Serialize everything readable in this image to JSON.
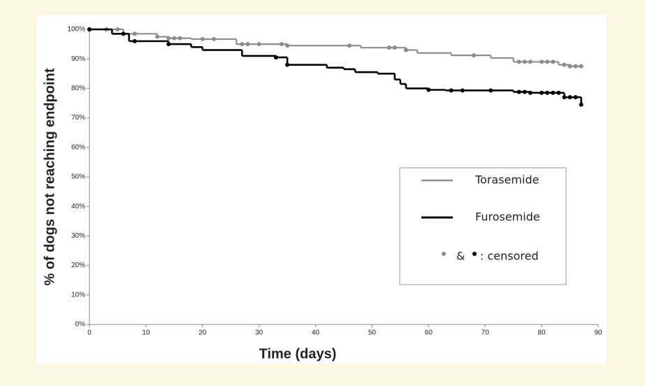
{
  "chart_data": {
    "type": "line",
    "step": true,
    "x_label": "Time (days)",
    "y_label": "% of dogs not reaching endpoint",
    "xlim": [
      0,
      90
    ],
    "xticks": [
      0,
      10,
      20,
      30,
      40,
      50,
      60,
      70,
      80,
      90
    ],
    "ylim": [
      0,
      100
    ],
    "yticks": [
      {
        "value": 0,
        "label": "0%"
      },
      {
        "value": 10,
        "label": "10%"
      },
      {
        "value": 20,
        "label": "20%"
      },
      {
        "value": 30,
        "label": "30%"
      },
      {
        "value": 40,
        "label": "40%"
      },
      {
        "value": 50,
        "label": "50%"
      },
      {
        "value": 60,
        "label": "60%"
      },
      {
        "value": 70,
        "label": "70%"
      },
      {
        "value": 80,
        "label": "80%"
      },
      {
        "value": 90,
        "label": "90%"
      },
      {
        "value": 100,
        "label": "100%"
      }
    ],
    "grid": false,
    "censored_joiner": "&",
    "censored_label": ": censored",
    "series": [
      {
        "name": "Torasemide",
        "color": "#8c8c8c",
        "x": [
          0,
          6,
          12,
          14,
          18,
          26,
          35,
          48,
          56,
          58,
          64,
          71,
          75,
          83,
          85,
          87
        ],
        "values": [
          100,
          98.5,
          97.5,
          97,
          96.7,
          95,
          94.5,
          93.8,
          93,
          92,
          91.2,
          90.3,
          89,
          88,
          87.5,
          87.5
        ],
        "censored_x": [
          0,
          3,
          5,
          8,
          12,
          14,
          15,
          16,
          20,
          22,
          27,
          28,
          30,
          34,
          35,
          46,
          53,
          54,
          56,
          68,
          76,
          77,
          78,
          80,
          81,
          82,
          84,
          85,
          86,
          87
        ],
        "censored_values": [
          100,
          100,
          100,
          98.5,
          97.5,
          97,
          97,
          97,
          96.7,
          96.7,
          95,
          95,
          95,
          95,
          94.5,
          94.5,
          93.8,
          93.8,
          93,
          91.2,
          89,
          89,
          89,
          89,
          89,
          89,
          88,
          87.5,
          87.5,
          87.5
        ]
      },
      {
        "name": "Furosemide",
        "color": "#000000",
        "x": [
          0,
          4,
          7,
          14,
          18,
          20,
          27,
          33,
          35,
          42,
          45,
          47,
          51,
          54,
          55,
          56,
          60,
          63,
          75,
          78,
          84,
          87
        ],
        "values": [
          100,
          98.5,
          96,
          95,
          94,
          93,
          91,
          90.5,
          88,
          87,
          86.5,
          85.5,
          85,
          83,
          81.5,
          80,
          79.5,
          79.3,
          78.8,
          78.5,
          77,
          74.5
        ],
        "censored_x": [
          0,
          6,
          8,
          14,
          33,
          35,
          60,
          64,
          66,
          71,
          76,
          77,
          78,
          80,
          81,
          82,
          83,
          84,
          85,
          86,
          87
        ],
        "censored_values": [
          100,
          98.5,
          96,
          95,
          90.5,
          88,
          79.5,
          79.3,
          79.3,
          79.3,
          78.8,
          78.8,
          78.5,
          78.5,
          78.5,
          78.5,
          78.5,
          77,
          77,
          77,
          74.5
        ]
      }
    ]
  }
}
